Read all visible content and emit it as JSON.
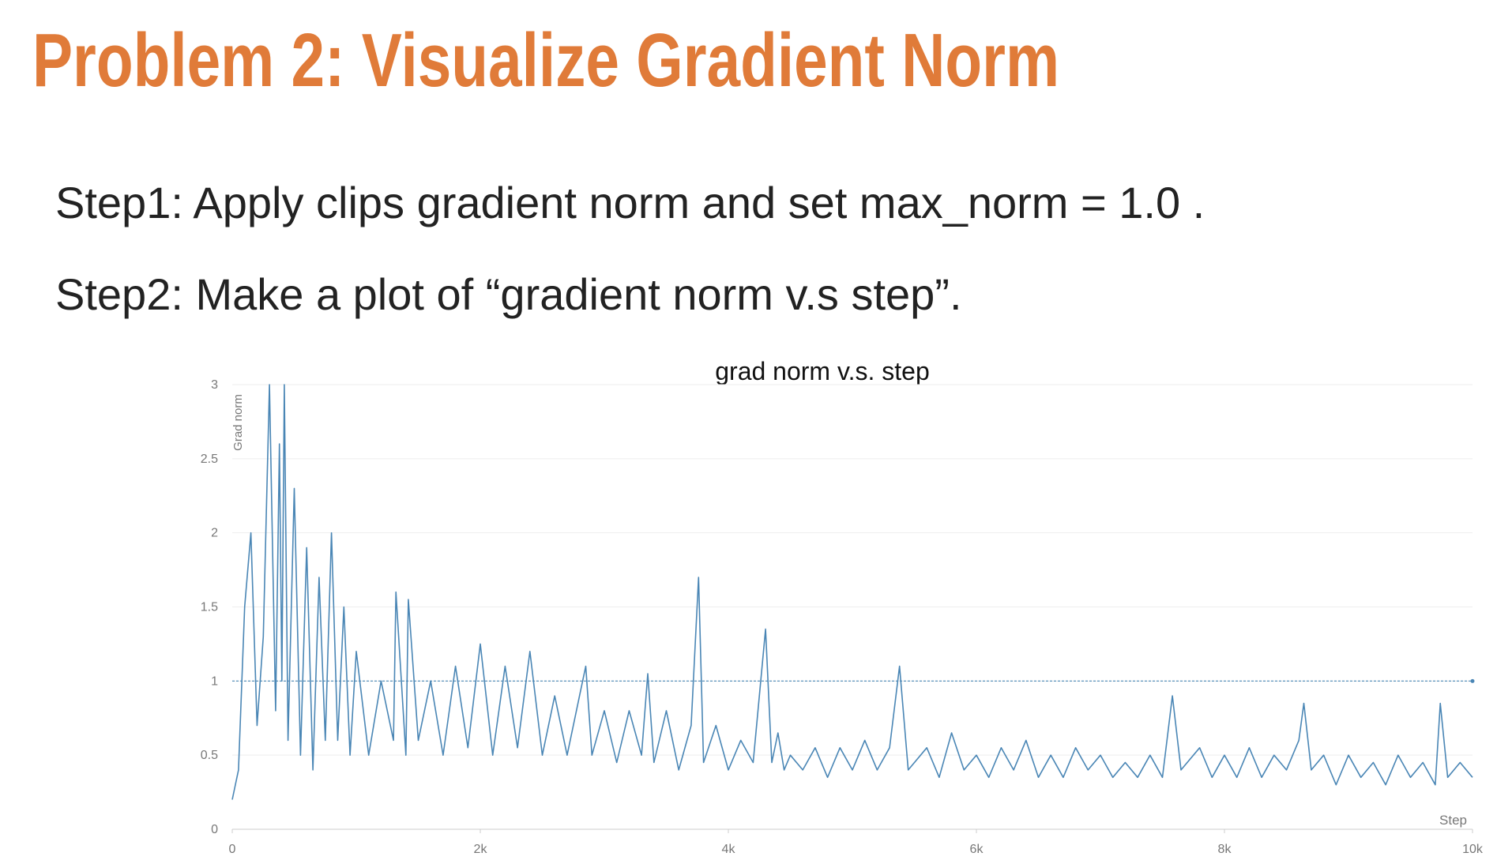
{
  "header": {
    "title": "Problem 2: Visualize Gradient Norm"
  },
  "body": {
    "steps": [
      "Step1: Apply clips gradient norm and set max_norm = 1.0 .",
      "Step2: Make a plot of “gradient norm v.s step”."
    ]
  },
  "chart_data": {
    "type": "line",
    "title": "grad norm v.s. step",
    "x_label": "Step",
    "y_label": "Grad norm",
    "color": "#4a86b5",
    "grid": true,
    "reference_line": 1,
    "xlim": [
      0,
      10000
    ],
    "ylim": [
      0,
      3
    ],
    "xticks": [
      0,
      {
        "value": 2000,
        "label": "2k"
      },
      {
        "value": 4000,
        "label": "4k"
      },
      {
        "value": 6000,
        "label": "6k"
      },
      {
        "value": 8000,
        "label": "8k"
      },
      {
        "value": 10000,
        "label": "10k"
      }
    ],
    "yticks": [
      0,
      0.5,
      1,
      1.5,
      2,
      2.5,
      3
    ],
    "x": [
      0,
      50,
      100,
      150,
      200,
      250,
      300,
      350,
      380,
      400,
      420,
      450,
      500,
      550,
      600,
      650,
      700,
      750,
      800,
      850,
      900,
      950,
      1000,
      1100,
      1200,
      1300,
      1320,
      1400,
      1420,
      1500,
      1600,
      1700,
      1800,
      1900,
      2000,
      2100,
      2200,
      2300,
      2400,
      2500,
      2600,
      2700,
      2800,
      2850,
      2900,
      3000,
      3100,
      3200,
      3300,
      3350,
      3400,
      3500,
      3600,
      3700,
      3760,
      3800,
      3900,
      4000,
      4100,
      4200,
      4300,
      4350,
      4400,
      4450,
      4500,
      4600,
      4700,
      4800,
      4900,
      5000,
      5100,
      5200,
      5300,
      5380,
      5450,
      5600,
      5700,
      5800,
      5900,
      6000,
      6100,
      6200,
      6300,
      6400,
      6500,
      6600,
      6700,
      6800,
      6900,
      7000,
      7100,
      7200,
      7300,
      7400,
      7500,
      7580,
      7650,
      7800,
      7900,
      8000,
      8100,
      8200,
      8300,
      8400,
      8500,
      8600,
      8640,
      8700,
      8800,
      8900,
      9000,
      9100,
      9200,
      9300,
      9400,
      9500,
      9600,
      9700,
      9740,
      9800,
      9900,
      10000
    ],
    "values": [
      0.2,
      0.4,
      1.5,
      2.0,
      0.7,
      1.3,
      3.0,
      0.8,
      2.6,
      1.0,
      3.0,
      0.6,
      2.3,
      0.5,
      1.9,
      0.4,
      1.7,
      0.6,
      2.0,
      0.6,
      1.5,
      0.5,
      1.2,
      0.5,
      1.0,
      0.6,
      1.6,
      0.5,
      1.55,
      0.6,
      1.0,
      0.5,
      1.1,
      0.55,
      1.25,
      0.5,
      1.1,
      0.55,
      1.2,
      0.5,
      0.9,
      0.5,
      0.9,
      1.1,
      0.5,
      0.8,
      0.45,
      0.8,
      0.5,
      1.05,
      0.45,
      0.8,
      0.4,
      0.7,
      1.7,
      0.45,
      0.7,
      0.4,
      0.6,
      0.45,
      1.35,
      0.45,
      0.65,
      0.4,
      0.5,
      0.4,
      0.55,
      0.35,
      0.55,
      0.4,
      0.6,
      0.4,
      0.55,
      1.1,
      0.4,
      0.55,
      0.35,
      0.65,
      0.4,
      0.5,
      0.35,
      0.55,
      0.4,
      0.6,
      0.35,
      0.5,
      0.35,
      0.55,
      0.4,
      0.5,
      0.35,
      0.45,
      0.35,
      0.5,
      0.35,
      0.9,
      0.4,
      0.55,
      0.35,
      0.5,
      0.35,
      0.55,
      0.35,
      0.5,
      0.4,
      0.6,
      0.85,
      0.4,
      0.5,
      0.3,
      0.5,
      0.35,
      0.45,
      0.3,
      0.5,
      0.35,
      0.45,
      0.3,
      0.85,
      0.35,
      0.45,
      0.35
    ]
  }
}
